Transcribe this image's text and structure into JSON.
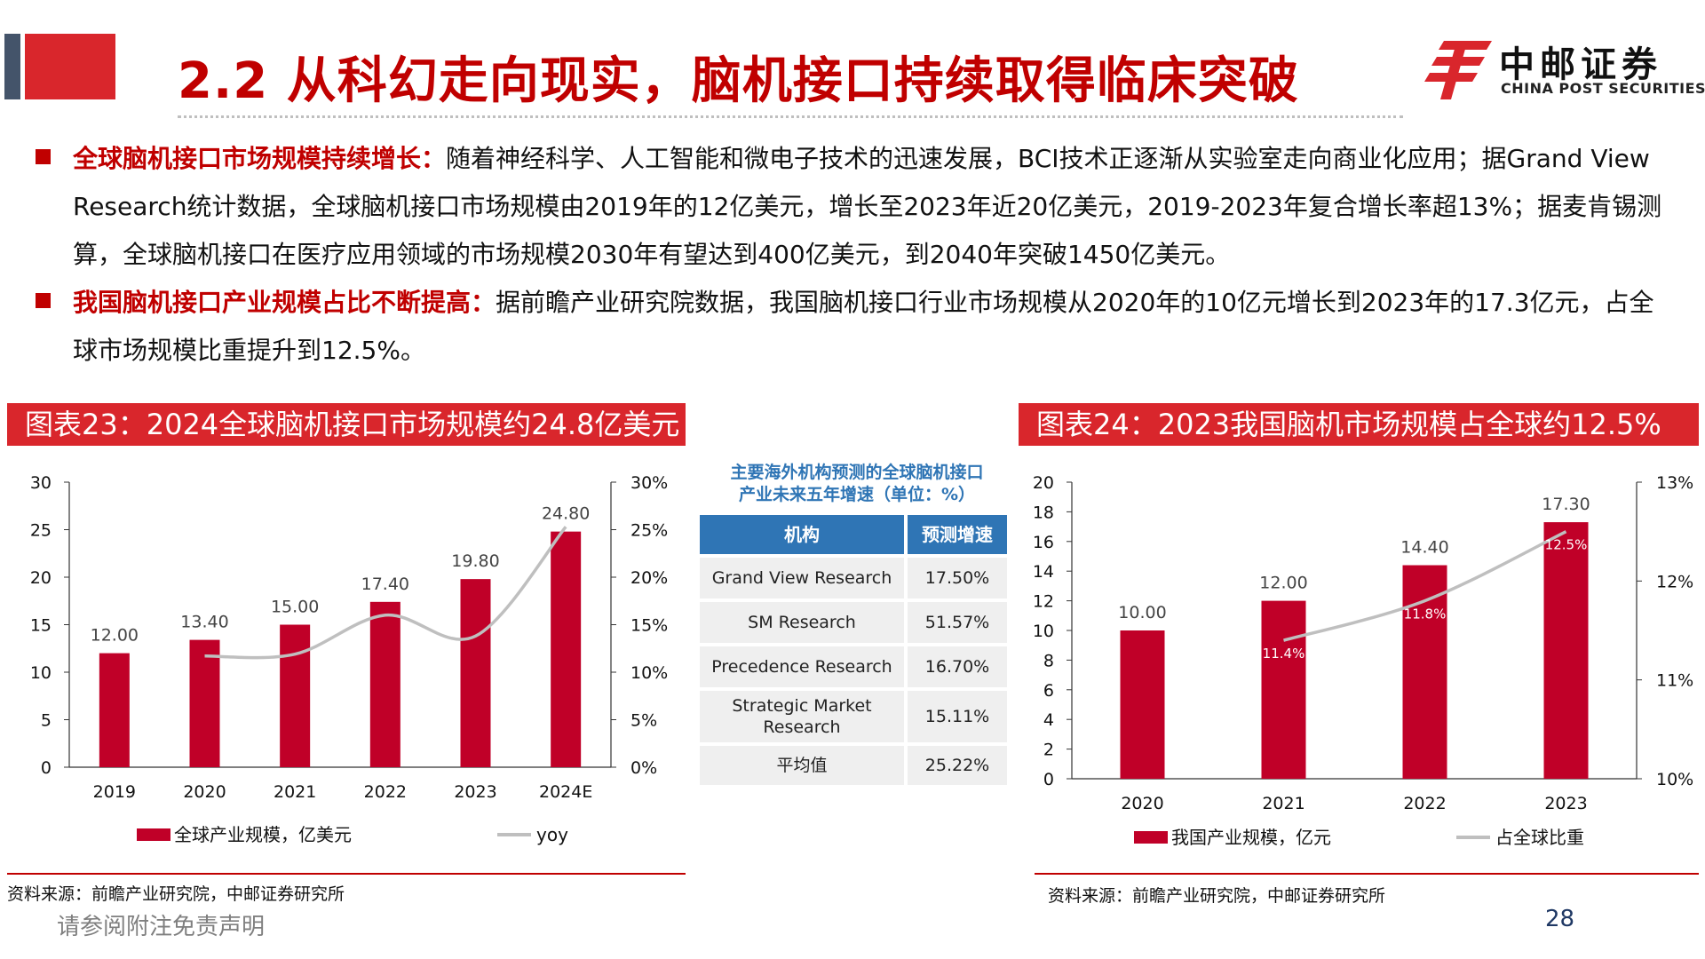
{
  "header": {
    "title": "2.2 从科幻走向现实，脑机接口持续取得临床突破",
    "logo_cn": "中邮证券",
    "logo_en": "CHINA POST SECURITIES"
  },
  "bullets": [
    {
      "lead": "全球脑机接口市场规模持续增长：",
      "text": "随着神经科学、人工智能和微电子技术的迅速发展，BCI技术正逐渐从实验室走向商业化应用；据Grand View Research统计数据，全球脑机接口市场规模由2019年的12亿美元，增长至2023年近20亿美元，2019-2023年复合增长率超13%；据麦肯锡测算，全球脑机接口在医疗应用领域的市场规模2030年有望达到400亿美元，到2040年突破1450亿美元。"
    },
    {
      "lead": "我国脑机接口产业规模占比不断提高：",
      "text": "据前瞻产业研究院数据，我国脑机接口行业市场规模从2020年的10亿元增长到2023年的17.3亿元，占全球市场规模比重提升到12.5%。"
    }
  ],
  "left_panel": {
    "header": "图表23：2024全球脑机接口市场规模约24.8亿美元",
    "source": "资料来源：前瞻产业研究院，中邮证券研究所"
  },
  "right_panel": {
    "header": "图表24：2023我国脑机市场规模占全球约12.5%",
    "source": "资料来源：前瞻产业研究院，中邮证券研究所"
  },
  "table": {
    "title_line1": "主要海外机构预测的全球脑机接口",
    "title_line2": "产业未来五年增速（单位：%）",
    "col1": "机构",
    "col2": "预测增速",
    "rows": [
      {
        "org": "Grand View Research",
        "rate": "17.50%"
      },
      {
        "org": "SM Research",
        "rate": "51.57%"
      },
      {
        "org": "Precedence Research",
        "rate": "16.70%"
      },
      {
        "org": "Strategic Market Research",
        "rate": "15.11%"
      },
      {
        "org": "平均值",
        "rate": "25.22%"
      }
    ]
  },
  "footer": {
    "disclaimer": "请参阅附注免责声明",
    "page": "28"
  },
  "chart_data": [
    {
      "type": "bar",
      "categories": [
        "2019",
        "2020",
        "2021",
        "2022",
        "2023",
        "2024E"
      ],
      "series": [
        {
          "name": "全球产业规模，亿美元",
          "type": "bar",
          "axis": "left",
          "values": [
            12.0,
            13.4,
            15.0,
            17.4,
            19.8,
            24.8
          ],
          "labels": [
            "12.00",
            "13.40",
            "15.00",
            "17.40",
            "19.80",
            "24.80"
          ],
          "color": "#c00028"
        },
        {
          "name": "yoy",
          "type": "line",
          "axis": "right",
          "values": [
            null,
            11.7,
            11.9,
            16.0,
            13.8,
            25.3
          ],
          "color": "#bfbfbf"
        }
      ],
      "yleft": {
        "min": 0,
        "max": 30,
        "ticks": [
          "0",
          "5",
          "10",
          "15",
          "20",
          "25",
          "30"
        ]
      },
      "yright": {
        "min": 0,
        "max": 30,
        "ticks": [
          "0%",
          "5%",
          "10%",
          "15%",
          "20%",
          "25%",
          "30%"
        ]
      },
      "legend": "bottom"
    },
    {
      "type": "bar",
      "categories": [
        "2020",
        "2021",
        "2022",
        "2023"
      ],
      "series": [
        {
          "name": "我国产业规模，亿元",
          "type": "bar",
          "axis": "left",
          "values": [
            10.0,
            12.0,
            14.4,
            17.3
          ],
          "labels": [
            "10.00",
            "12.00",
            "14.40",
            "17.30"
          ],
          "color": "#c00028"
        },
        {
          "name": "占全球比重",
          "type": "line",
          "axis": "right",
          "values": [
            null,
            11.4,
            11.8,
            12.5
          ],
          "labels": [
            "",
            "11.4%",
            "11.8%",
            "12.5%"
          ],
          "color": "#bfbfbf"
        }
      ],
      "yleft": {
        "min": 0,
        "max": 20,
        "ticks": [
          "0",
          "2",
          "4",
          "6",
          "8",
          "10",
          "12",
          "14",
          "16",
          "18",
          "20"
        ]
      },
      "yright": {
        "min": 10,
        "max": 13,
        "ticks": [
          "10%",
          "11%",
          "12%",
          "13%"
        ]
      },
      "legend": "bottom"
    }
  ]
}
